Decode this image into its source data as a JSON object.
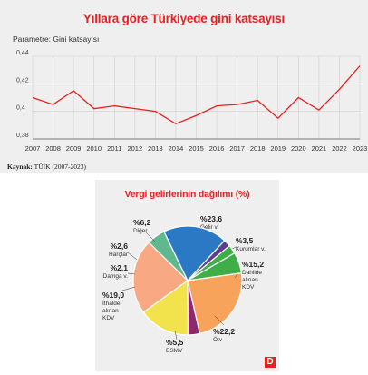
{
  "line_panel": {
    "title": "Yıllara göre Türkiyede gini katsayısı",
    "parameter_label": "Parametre:  Gini katsayısı",
    "source_key": "Kaynak:",
    "source_value": " TÜİK (2007-2023)"
  },
  "pie_panel": {
    "title": "Vergi gelirlerinin dağılımı (%)",
    "logo_text": "D"
  },
  "colors": {
    "line": "#e8201f",
    "title": "#e8201f",
    "grid": "#cfcfcf",
    "axis": "#555555"
  },
  "chart_data": [
    {
      "type": "line",
      "title": "Yıllara göre Türkiyede gini katsayısı",
      "x": [
        "2007",
        "2008",
        "2009",
        "2010",
        "2011",
        "2012",
        "2013",
        "2014",
        "2015",
        "2016",
        "2017",
        "2018",
        "2019",
        "2020",
        "2021",
        "2022",
        "2023"
      ],
      "series": [
        {
          "name": "Gini katsayısı",
          "values": [
            0.41,
            0.405,
            0.415,
            0.402,
            0.404,
            0.402,
            0.4,
            0.391,
            0.397,
            0.404,
            0.405,
            0.408,
            0.395,
            0.41,
            0.401,
            0.416,
            0.433
          ]
        }
      ],
      "yticks": [
        "0,38",
        "0,4",
        "0,42",
        "0,44"
      ],
      "ylim": [
        0.38,
        0.44
      ],
      "grid": true
    },
    {
      "type": "pie",
      "title": "Vergi gelirlerinin dağılımı (%)",
      "slices": [
        {
          "label": "Gelir v.",
          "pct_text": "%23,6",
          "value": 23.6,
          "color": "#f7a35c"
        },
        {
          "label": "Kurumlar v.",
          "pct_text": "%3,5",
          "value": 3.5,
          "color": "#8e2a6b"
        },
        {
          "label": "Dahilde alınan KDV",
          "pct_text": "%15,2",
          "value": 15.2,
          "color": "#f2e24b"
        },
        {
          "label": "Ötv",
          "pct_text": "%22,2",
          "value": 22.2,
          "color": "#f8a882"
        },
        {
          "label": "BSMV",
          "pct_text": "%5,5",
          "value": 5.5,
          "color": "#5fb88e"
        },
        {
          "label": "İthalde alınan KDV",
          "pct_text": "%19,0",
          "value": 19.0,
          "color": "#2b78c5"
        },
        {
          "label": "Damga v.",
          "pct_text": "%2,1",
          "value": 2.1,
          "color": "#5b3f8f"
        },
        {
          "label": "Harçlar",
          "pct_text": "%2,6",
          "value": 2.6,
          "color": "#3fae49"
        },
        {
          "label": "Diğer",
          "pct_text": "%6,2",
          "value": 6.2,
          "color": "#3fae49"
        }
      ]
    }
  ]
}
